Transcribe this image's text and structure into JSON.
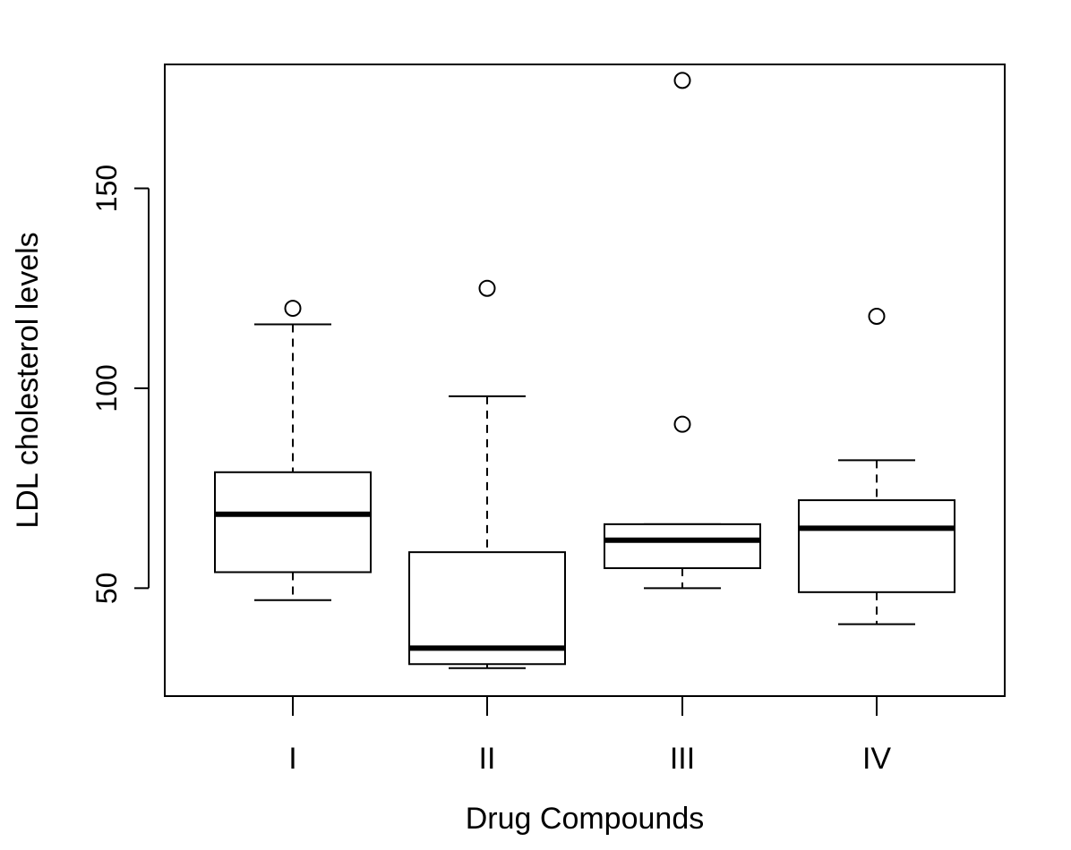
{
  "chart_data": {
    "type": "boxplot",
    "xlabel": "Drug Compounds",
    "ylabel": "LDL cholesterol levels",
    "categories": [
      "I",
      "II",
      "III",
      "IV"
    ],
    "yticks": [
      50,
      100,
      150
    ],
    "ylim": [
      23,
      181
    ],
    "grid": false,
    "boxes": [
      {
        "category": "I",
        "whisker_low": 47,
        "q1": 54,
        "median": 68.5,
        "q3": 79,
        "whisker_high": 116,
        "outliers": [
          120
        ]
      },
      {
        "category": "II",
        "whisker_low": 30,
        "q1": 31,
        "median": 35,
        "q3": 59,
        "whisker_high": 98,
        "outliers": [
          125
        ]
      },
      {
        "category": "III",
        "whisker_low": 50,
        "q1": 55,
        "median": 62,
        "q3": 66,
        "whisker_high": 66,
        "outliers": [
          91,
          177
        ]
      },
      {
        "category": "IV",
        "whisker_low": 41,
        "q1": 49,
        "median": 65,
        "q3": 72,
        "whisker_high": 82,
        "outliers": [
          118
        ]
      }
    ]
  }
}
